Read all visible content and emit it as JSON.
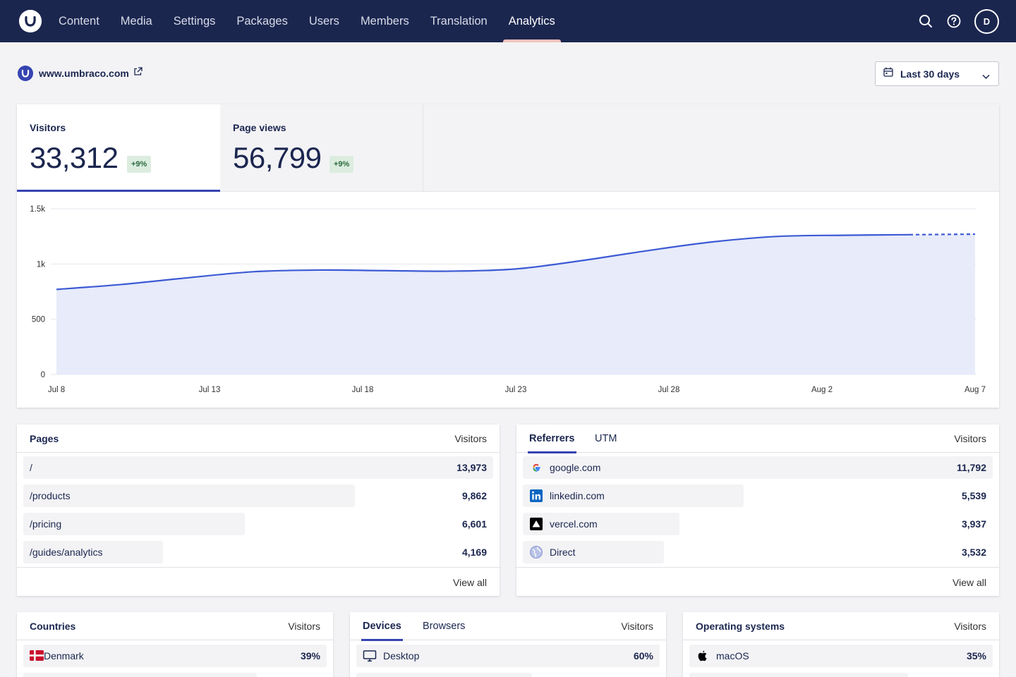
{
  "nav": {
    "items": [
      "Content",
      "Media",
      "Settings",
      "Packages",
      "Users",
      "Members",
      "Translation",
      "Analytics"
    ],
    "active": "Analytics",
    "user_initial": "D"
  },
  "site": {
    "name": "www.umbraco.com"
  },
  "date_range": {
    "label": "Last 30 days"
  },
  "metrics": {
    "visitors": {
      "label": "Visitors",
      "value": "33,312",
      "delta": "+9%"
    },
    "pageviews": {
      "label": "Page views",
      "value": "56,799",
      "delta": "+9%"
    }
  },
  "chart_data": {
    "type": "area",
    "series": [
      {
        "values": [
          770,
          815,
          875,
          930,
          945,
          940,
          935,
          955,
          1030,
          1120,
          1200,
          1250,
          1260,
          1265,
          1270
        ]
      }
    ],
    "x": [
      "Jul 8",
      "Jul 10",
      "Jul 12",
      "Jul 14",
      "Jul 16",
      "Jul 18",
      "Jul 20",
      "Jul 22",
      "Jul 24",
      "Jul 26",
      "Jul 28",
      "Jul 31",
      "Aug 2",
      "Aug 5",
      "Aug 7"
    ],
    "x_ticks": [
      "Jul 8",
      "Jul 13",
      "Jul 18",
      "Jul 23",
      "Jul 28",
      "Aug 2",
      "Aug 7"
    ],
    "y_ticks": [
      "0",
      "500",
      "1k",
      "1.5k"
    ],
    "ylim": [
      0,
      1500
    ],
    "grid": true,
    "dashed_last_segment": true,
    "colors": {
      "line": "#3c5ad4",
      "fill": "#e7ebfa"
    }
  },
  "pages": {
    "title": "Pages",
    "col": "Visitors",
    "rows": [
      {
        "label": "/",
        "value": "13,973",
        "share": 1.0
      },
      {
        "label": "/products",
        "value": "9,862",
        "share": 0.706
      },
      {
        "label": "/pricing",
        "value": "6,601",
        "share": 0.472
      },
      {
        "label": "/guides/analytics",
        "value": "4,169",
        "share": 0.298
      }
    ],
    "view_all": "View all"
  },
  "referrers": {
    "tabs": [
      "Referrers",
      "UTM"
    ],
    "col": "Visitors",
    "rows": [
      {
        "label": "google.com",
        "value": "11,792",
        "share": 1.0,
        "icon": "google-icon"
      },
      {
        "label": "linkedin.com",
        "value": "5,539",
        "share": 0.47,
        "icon": "linkedin-icon"
      },
      {
        "label": "vercel.com",
        "value": "3,937",
        "share": 0.334,
        "icon": "vercel-icon"
      },
      {
        "label": "Direct",
        "value": "3,532",
        "share": 0.3,
        "icon": "globe-icon"
      }
    ],
    "view_all": "View all"
  },
  "countries": {
    "title": "Countries",
    "col": "Visitors",
    "rows": [
      {
        "label": "Denmark",
        "value": "39%",
        "share": 1.0,
        "icon": "denmark-flag-icon"
      },
      {
        "label": "",
        "value": "",
        "share": 0.77
      }
    ]
  },
  "devices": {
    "tabs": [
      "Devices",
      "Browsers"
    ],
    "col": "Visitors",
    "rows": [
      {
        "label": "Desktop",
        "value": "60%",
        "share": 1.0,
        "icon": "desktop-icon"
      },
      {
        "label": "",
        "value": "",
        "share": 0.58
      }
    ]
  },
  "os": {
    "title": "Operating systems",
    "col": "Visitors",
    "rows": [
      {
        "label": "macOS",
        "value": "35%",
        "share": 1.0,
        "icon": "apple-icon"
      },
      {
        "label": "",
        "value": "",
        "share": 0.72
      }
    ]
  }
}
